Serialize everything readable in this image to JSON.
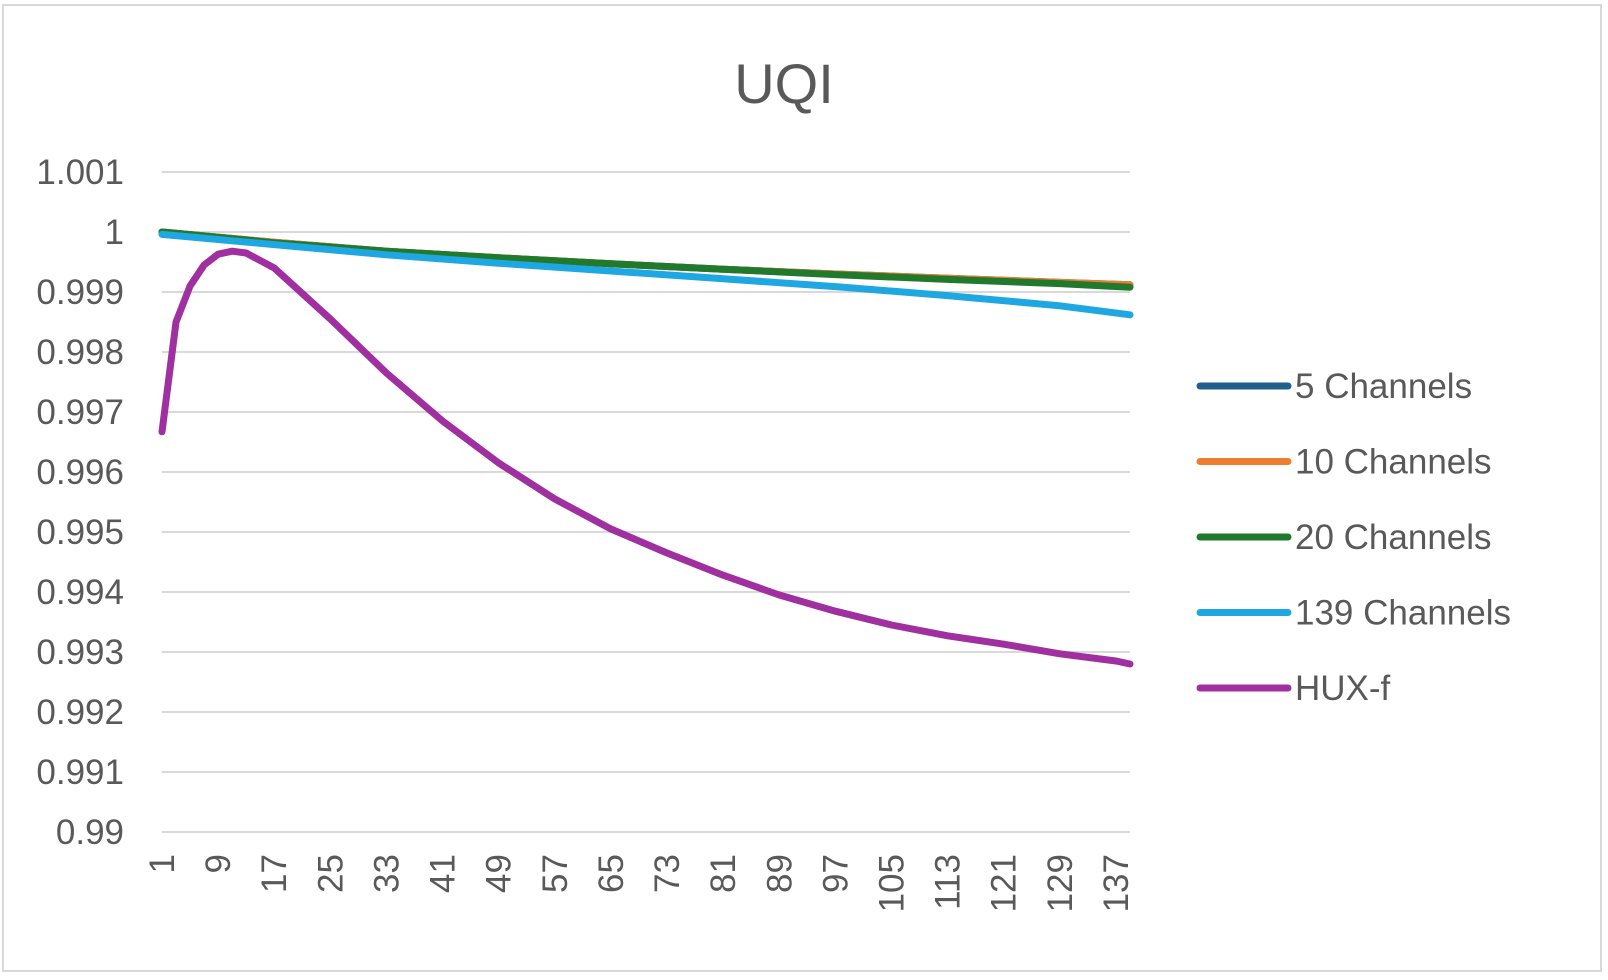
{
  "chart_data": {
    "type": "line",
    "title": "UQI",
    "xlabel": "",
    "ylabel": "",
    "x_range": [
      1,
      139
    ],
    "x_tick_labels": [
      "1",
      "9",
      "17",
      "25",
      "33",
      "41",
      "49",
      "57",
      "65",
      "73",
      "81",
      "89",
      "97",
      "105",
      "113",
      "121",
      "129",
      "137"
    ],
    "ylim": [
      0.99,
      1.001
    ],
    "y_tick_labels": [
      "1.001",
      "1",
      "0.999",
      "0.998",
      "0.997",
      "0.996",
      "0.995",
      "0.994",
      "0.993",
      "0.992",
      "0.991",
      "0.99"
    ],
    "grid": "horizontal",
    "legend_position": "right",
    "series": [
      {
        "name": "5 Channels",
        "color": "#1f5f8b",
        "x": [
          1,
          17,
          33,
          49,
          65,
          81,
          97,
          113,
          129,
          139
        ],
        "values": [
          1.0,
          0.99983,
          0.99968,
          0.99957,
          0.99947,
          0.99938,
          0.9993,
          0.99923,
          0.99916,
          0.99912
        ]
      },
      {
        "name": "10 Channels",
        "color": "#ed7d31",
        "x": [
          1,
          17,
          33,
          49,
          65,
          81,
          97,
          113,
          129,
          139
        ],
        "values": [
          1.0,
          0.99983,
          0.99968,
          0.99957,
          0.99947,
          0.99938,
          0.9993,
          0.99923,
          0.99916,
          0.99912
        ]
      },
      {
        "name": "20 Channels",
        "color": "#217a2b",
        "x": [
          1,
          17,
          33,
          49,
          65,
          81,
          97,
          113,
          129,
          139
        ],
        "values": [
          1.0,
          0.99982,
          0.99968,
          0.99957,
          0.99947,
          0.99938,
          0.99929,
          0.99921,
          0.99914,
          0.99908
        ]
      },
      {
        "name": "139 Channels",
        "color": "#1ea7e1",
        "x": [
          1,
          17,
          33,
          49,
          65,
          81,
          97,
          113,
          129,
          139
        ],
        "values": [
          0.99996,
          0.99979,
          0.99962,
          0.99948,
          0.99935,
          0.99922,
          0.99909,
          0.99894,
          0.99877,
          0.99862
        ]
      },
      {
        "name": "HUX-f",
        "color": "#a02fa0",
        "x": [
          1,
          3,
          5,
          7,
          9,
          11,
          13,
          17,
          25,
          33,
          41,
          49,
          57,
          65,
          73,
          81,
          89,
          97,
          105,
          113,
          121,
          129,
          137,
          139
        ],
        "values": [
          0.99667,
          0.9985,
          0.9991,
          0.99945,
          0.99963,
          0.99968,
          0.99965,
          0.9994,
          0.99855,
          0.99765,
          0.99685,
          0.99615,
          0.99555,
          0.99505,
          0.99465,
          0.99428,
          0.99395,
          0.99368,
          0.99345,
          0.99327,
          0.99313,
          0.99297,
          0.99285,
          0.9928
        ]
      }
    ]
  }
}
